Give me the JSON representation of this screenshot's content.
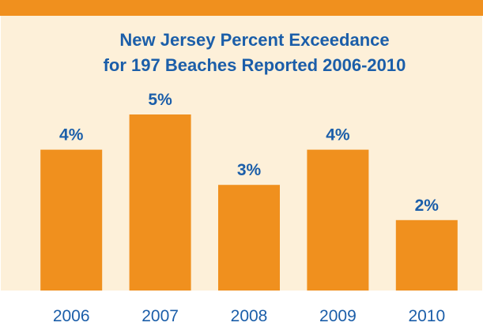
{
  "chart_data": {
    "type": "bar",
    "title": [
      "New Jersey Percent Exceedance",
      "for 197 Beaches Reported 2006-2010"
    ],
    "categories": [
      "2006",
      "2007",
      "2008",
      "2009",
      "2010"
    ],
    "values": [
      4,
      5,
      3,
      4,
      2
    ],
    "value_labels": [
      "4%",
      "5%",
      "3%",
      "4%",
      "2%"
    ],
    "color": "#f0901e"
  }
}
